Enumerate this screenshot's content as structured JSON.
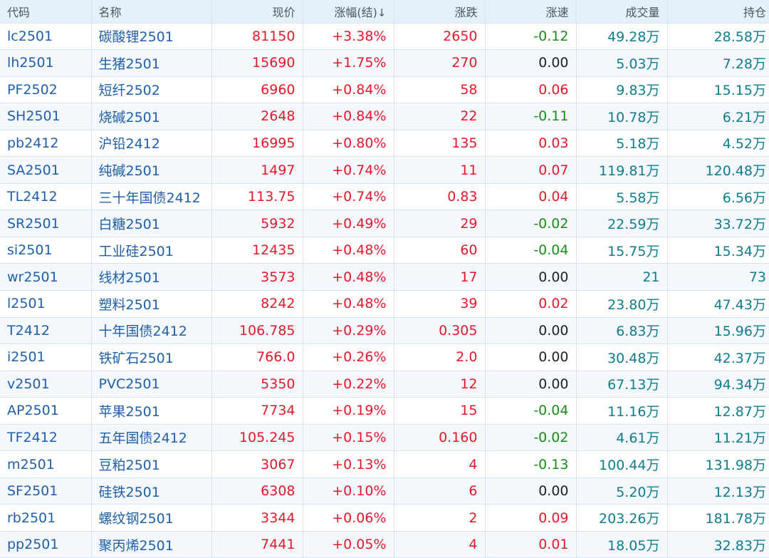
{
  "columns": {
    "code": "代码",
    "name": "名称",
    "price": "现价",
    "pct": "涨幅(结)",
    "pct_sort": "↓",
    "chg": "涨跌",
    "speed": "涨速",
    "volume": "成交量",
    "open_interest": "持仓"
  },
  "colors": {
    "up": "#e0192b",
    "down": "#1a8a1a",
    "flat": "#222222",
    "link": "#1f5fa8",
    "teal": "#0f7c8c",
    "header_bg": "#e6f0fa",
    "row_alt_bg": "#f4f8fc"
  },
  "rows": [
    {
      "code": "lc2501",
      "name": "碳酸锂2501",
      "price": "81150",
      "pct": "+3.38%",
      "chg": "2650",
      "speed": "-0.12",
      "volume": "49.28万",
      "oi": "28.58万"
    },
    {
      "code": "lh2501",
      "name": "生猪2501",
      "price": "15690",
      "pct": "+1.75%",
      "chg": "270",
      "speed": "0.00",
      "volume": "5.03万",
      "oi": "7.28万"
    },
    {
      "code": "PF2502",
      "name": "短纤2502",
      "price": "6960",
      "pct": "+0.84%",
      "chg": "58",
      "speed": "0.06",
      "volume": "9.83万",
      "oi": "15.15万"
    },
    {
      "code": "SH2501",
      "name": "烧碱2501",
      "price": "2648",
      "pct": "+0.84%",
      "chg": "22",
      "speed": "-0.11",
      "volume": "10.78万",
      "oi": "6.21万"
    },
    {
      "code": "pb2412",
      "name": "沪铅2412",
      "price": "16995",
      "pct": "+0.80%",
      "chg": "135",
      "speed": "0.03",
      "volume": "5.18万",
      "oi": "4.52万"
    },
    {
      "code": "SA2501",
      "name": "纯碱2501",
      "price": "1497",
      "pct": "+0.74%",
      "chg": "11",
      "speed": "0.07",
      "volume": "119.81万",
      "oi": "120.48万"
    },
    {
      "code": "TL2412",
      "name": "三十年国债2412",
      "price": "113.75",
      "pct": "+0.74%",
      "chg": "0.83",
      "speed": "0.04",
      "volume": "5.58万",
      "oi": "6.56万"
    },
    {
      "code": "SR2501",
      "name": "白糖2501",
      "price": "5932",
      "pct": "+0.49%",
      "chg": "29",
      "speed": "-0.02",
      "volume": "22.59万",
      "oi": "33.72万"
    },
    {
      "code": "si2501",
      "name": "工业硅2501",
      "price": "12435",
      "pct": "+0.48%",
      "chg": "60",
      "speed": "-0.04",
      "volume": "15.75万",
      "oi": "15.34万"
    },
    {
      "code": "wr2501",
      "name": "线材2501",
      "price": "3573",
      "pct": "+0.48%",
      "chg": "17",
      "speed": "0.00",
      "volume": "21",
      "oi": "73"
    },
    {
      "code": "l2501",
      "name": "塑料2501",
      "price": "8242",
      "pct": "+0.48%",
      "chg": "39",
      "speed": "0.02",
      "volume": "23.80万",
      "oi": "47.43万"
    },
    {
      "code": "T2412",
      "name": "十年国债2412",
      "price": "106.785",
      "pct": "+0.29%",
      "chg": "0.305",
      "speed": "0.00",
      "volume": "6.83万",
      "oi": "15.96万"
    },
    {
      "code": "i2501",
      "name": "铁矿石2501",
      "price": "766.0",
      "pct": "+0.26%",
      "chg": "2.0",
      "speed": "0.00",
      "volume": "30.48万",
      "oi": "42.37万"
    },
    {
      "code": "v2501",
      "name": "PVC2501",
      "price": "5350",
      "pct": "+0.22%",
      "chg": "12",
      "speed": "0.00",
      "volume": "67.13万",
      "oi": "94.34万"
    },
    {
      "code": "AP2501",
      "name": "苹果2501",
      "price": "7734",
      "pct": "+0.19%",
      "chg": "15",
      "speed": "-0.04",
      "volume": "11.16万",
      "oi": "12.87万"
    },
    {
      "code": "TF2412",
      "name": "五年国债2412",
      "price": "105.245",
      "pct": "+0.15%",
      "chg": "0.160",
      "speed": "-0.02",
      "volume": "4.61万",
      "oi": "11.21万"
    },
    {
      "code": "m2501",
      "name": "豆粕2501",
      "price": "3067",
      "pct": "+0.13%",
      "chg": "4",
      "speed": "-0.13",
      "volume": "100.44万",
      "oi": "131.98万"
    },
    {
      "code": "SF2501",
      "name": "硅铁2501",
      "price": "6308",
      "pct": "+0.10%",
      "chg": "6",
      "speed": "0.00",
      "volume": "5.20万",
      "oi": "12.13万"
    },
    {
      "code": "rb2501",
      "name": "螺纹钢2501",
      "price": "3344",
      "pct": "+0.06%",
      "chg": "2",
      "speed": "0.09",
      "volume": "203.26万",
      "oi": "181.78万"
    },
    {
      "code": "pp2501",
      "name": "聚丙烯2501",
      "price": "7441",
      "pct": "+0.05%",
      "chg": "4",
      "speed": "0.01",
      "volume": "18.05万",
      "oi": "32.83万"
    }
  ]
}
